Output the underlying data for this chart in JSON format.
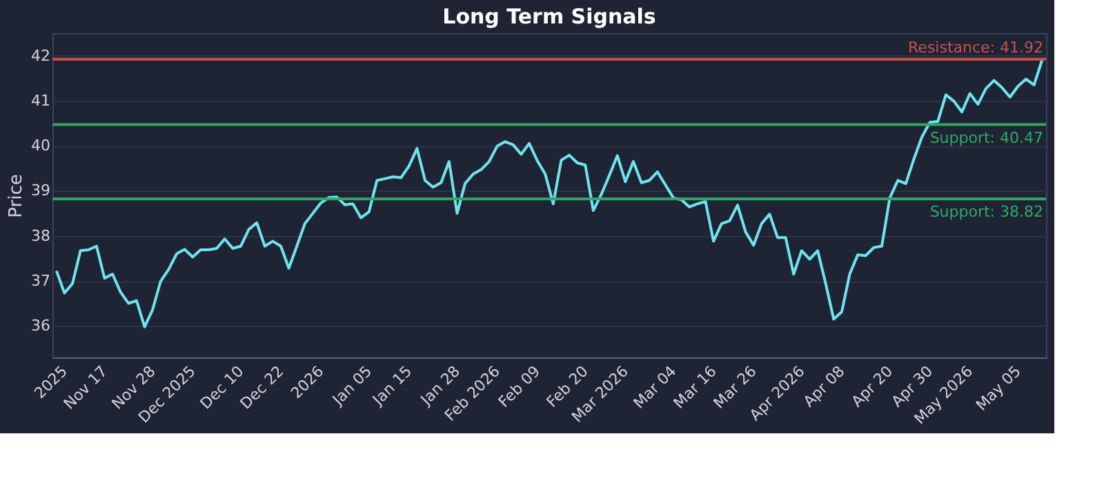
{
  "chart_data": {
    "type": "line",
    "title": "Long Term Signals",
    "ylabel": "Price",
    "categories": [
      null,
      "2025",
      null,
      null,
      null,
      null,
      "Nov 17",
      null,
      null,
      null,
      null,
      null,
      "Nov 28",
      null,
      null,
      null,
      null,
      "Dec 2025",
      null,
      null,
      null,
      null,
      null,
      "Dec 10",
      null,
      null,
      null,
      null,
      "Dec 22",
      null,
      null,
      null,
      null,
      "2026",
      null,
      null,
      null,
      null,
      null,
      "Jan 05",
      null,
      null,
      null,
      null,
      "Jan 15",
      null,
      null,
      null,
      null,
      null,
      "Jan 28",
      null,
      null,
      null,
      null,
      "Feb 2026",
      null,
      null,
      null,
      null,
      "Feb 09",
      null,
      null,
      null,
      null,
      null,
      "Feb 20",
      null,
      null,
      null,
      null,
      "Mar 2026",
      null,
      null,
      null,
      null,
      null,
      "Mar 04",
      null,
      null,
      null,
      null,
      "Mar 16",
      null,
      null,
      null,
      null,
      "Mar 26",
      null,
      null,
      null,
      null,
      null,
      "Apr 2026",
      null,
      null,
      null,
      null,
      "Apr 08",
      null,
      null,
      null,
      null,
      null,
      "Apr 20",
      null,
      null,
      null,
      null,
      "Apr 30",
      null,
      null,
      null,
      null,
      "May 2026",
      null,
      null,
      null,
      null,
      null,
      "May 05",
      null,
      null,
      null
    ],
    "series": [
      {
        "color": "#6fe3ee",
        "values": [
          37.22,
          36.73,
          36.94,
          37.67,
          37.69,
          37.77,
          37.06,
          37.15,
          36.75,
          36.5,
          36.56,
          35.98,
          36.36,
          36.99,
          37.25,
          37.6,
          37.7,
          37.53,
          37.69,
          37.69,
          37.72,
          37.93,
          37.72,
          37.77,
          38.14,
          38.29,
          37.77,
          37.88,
          37.77,
          37.28,
          37.77,
          38.27,
          38.5,
          38.73,
          38.85,
          38.86,
          38.69,
          38.71,
          38.4,
          38.53,
          39.23,
          39.27,
          39.31,
          39.29,
          39.55,
          39.94,
          39.23,
          39.08,
          39.18,
          39.65,
          38.5,
          39.16,
          39.37,
          39.47,
          39.65,
          39.99,
          40.09,
          40.02,
          39.81,
          40.05,
          39.67,
          39.37,
          38.71,
          39.68,
          39.79,
          39.62,
          39.57,
          38.56,
          38.92,
          39.34,
          39.78,
          39.2,
          39.65,
          39.18,
          39.23,
          39.42,
          39.13,
          38.84,
          38.8,
          38.64,
          38.71,
          38.76,
          37.88,
          38.27,
          38.33,
          38.68,
          38.09,
          37.79,
          38.27,
          38.48,
          37.96,
          37.96,
          37.15,
          37.67,
          37.48,
          37.67,
          36.94,
          36.15,
          36.31,
          37.15,
          37.58,
          37.56,
          37.74,
          37.77,
          38.84,
          39.23,
          39.16,
          39.7,
          40.19,
          40.52,
          40.54,
          41.13,
          40.99,
          40.75,
          41.16,
          40.92,
          41.27,
          41.45,
          41.29,
          41.08,
          41.32,
          41.48,
          41.35,
          41.9
        ]
      }
    ],
    "ylim": [
      35.3,
      42.5
    ],
    "yticks": [
      36,
      37,
      38,
      39,
      40,
      41,
      42
    ],
    "grid": "y",
    "marker": "none",
    "line_style": "solid",
    "ref_lines": [
      {
        "axis": "y",
        "value": 41.92,
        "label": "Resistance: 41.92",
        "color": "#c9524f"
      },
      {
        "axis": "y",
        "value": 40.47,
        "label": "Support: 40.47",
        "color": "#2fa866"
      },
      {
        "axis": "y",
        "value": 38.82,
        "label": "Support: 38.82",
        "color": "#2fa866"
      }
    ]
  }
}
